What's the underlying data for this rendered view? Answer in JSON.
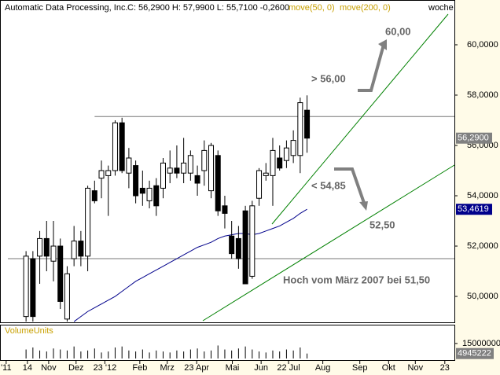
{
  "chart_data": {
    "type": "candlestick",
    "title": "Automatic Data Processing, Inc.",
    "quote": "C: 56,2900 H: 57,9900 L: 55,7100 -0,2600",
    "indicators": [
      "move(50, 0)",
      "move(200, 0)"
    ],
    "period": "woche",
    "x": [
      0,
      1,
      2,
      3,
      4,
      5,
      6,
      7,
      8,
      9,
      10,
      11,
      12,
      13,
      14,
      15,
      16,
      17,
      18,
      19,
      20,
      21,
      22,
      23,
      24,
      25,
      26,
      27,
      28,
      29,
      30,
      31,
      32,
      33,
      34,
      35,
      36,
      37,
      38,
      39,
      40,
      41
    ],
    "open": [
      49.2,
      51.5,
      51.6,
      52.3,
      51.4,
      52.0,
      49.1,
      51.5,
      52.2,
      51.6,
      54.2,
      54.7,
      54.8,
      55.0,
      56.9,
      54.9,
      55.2,
      54.3,
      53.8,
      54.4,
      54.3,
      54.9,
      55.1,
      54.9,
      54.9,
      54.8,
      55.0,
      54.2,
      55.6,
      53.6,
      52.4,
      52.3,
      53.4,
      50.8,
      53.9,
      54.8,
      54.8,
      55.5,
      55.4,
      55.6,
      55.6,
      57.4
    ],
    "high": [
      51.8,
      51.8,
      52.6,
      53.0,
      53.0,
      52.3,
      51.2,
      52.8,
      52.6,
      54.4,
      54.6,
      55.4,
      55.2,
      57.0,
      57.1,
      55.9,
      55.4,
      55.0,
      54.6,
      54.7,
      55.5,
      55.8,
      56.0,
      56.3,
      55.8,
      55.2,
      56.2,
      56.1,
      55.8,
      54.0,
      53.0,
      52.8,
      53.6,
      53.8,
      55.1,
      55.3,
      56.3,
      56.0,
      56.2,
      56.6,
      57.9,
      57.99
    ],
    "low": [
      49.0,
      49.0,
      50.5,
      51.0,
      50.6,
      49.5,
      49.0,
      51.2,
      51.2,
      51.0,
      53.7,
      53.9,
      53.2,
      54.8,
      54.9,
      54.3,
      53.7,
      53.6,
      53.5,
      53.2,
      53.9,
      54.5,
      54.7,
      54.5,
      54.6,
      54.0,
      54.4,
      53.9,
      53.2,
      52.7,
      51.5,
      51.1,
      50.5,
      50.7,
      53.6,
      54.6,
      53.6,
      55.0,
      55.1,
      55.3,
      54.9,
      55.71
    ],
    "close": [
      51.6,
      49.2,
      52.3,
      51.6,
      52.0,
      49.8,
      50.9,
      52.2,
      51.6,
      54.3,
      53.8,
      55.0,
      55.0,
      56.9,
      55.0,
      55.5,
      54.0,
      54.1,
      54.3,
      53.6,
      55.3,
      55.1,
      54.9,
      55.3,
      55.6,
      54.5,
      55.8,
      56.0,
      53.4,
      53.3,
      51.7,
      51.5,
      50.5,
      53.6,
      55.0,
      54.9,
      55.8,
      55.1,
      55.9,
      56.2,
      57.7,
      56.29
    ],
    "close_label": "56,2900",
    "up_color": "#ffffff",
    "down_color": "#000000",
    "series": [
      {
        "name": "move(50, 0)",
        "color": "#00008b",
        "last_label": "53,4619",
        "values": [
          null,
          null,
          null,
          null,
          null,
          null,
          null,
          49.0,
          49.2,
          49.4,
          49.55,
          49.7,
          49.85,
          50.0,
          50.2,
          50.4,
          50.6,
          50.75,
          50.9,
          51.05,
          51.2,
          51.35,
          51.5,
          51.65,
          51.8,
          51.95,
          52.05,
          52.15,
          52.3,
          52.4,
          52.45,
          52.5,
          52.5,
          52.45,
          52.5,
          52.6,
          52.7,
          52.8,
          52.95,
          53.1,
          53.3,
          53.4619
        ]
      }
    ],
    "hlines": [
      57.15,
      51.5
    ],
    "ylim": [
      48.97,
      61.78
    ],
    "yticks": [
      {
        "value": 50,
        "label": "50,0000"
      },
      {
        "value": 52,
        "label": "52,0000"
      },
      {
        "value": 54,
        "label": "54,0000"
      },
      {
        "value": 56,
        "label": "56,0000"
      },
      {
        "value": 58,
        "label": "58,0000"
      },
      {
        "value": 60,
        "label": "60,0000"
      }
    ],
    "xlim": [
      -3.8,
      62.5
    ],
    "xticks": [
      {
        "value": -2.9,
        "label": "'11"
      },
      {
        "value": 0.2,
        "label": "14"
      },
      {
        "value": 3.3,
        "label": "Nov"
      },
      {
        "value": 7.3,
        "label": "Dez"
      },
      {
        "value": 11.5,
        "label": "23 '12"
      },
      {
        "value": 16.6,
        "label": "Feb"
      },
      {
        "value": 20.6,
        "label": "Mrz"
      },
      {
        "value": 24.9,
        "label": "23 Apr"
      },
      {
        "value": 30.1,
        "label": "Mai"
      },
      {
        "value": 34.3,
        "label": "Jun"
      },
      {
        "value": 38.3,
        "label": "22 Jul"
      },
      {
        "value": 43.3,
        "label": "Aug"
      },
      {
        "value": 48.7,
        "label": "Sep"
      },
      {
        "value": 52.9,
        "label": "Okt"
      },
      {
        "value": 56.8,
        "label": "Nov"
      },
      {
        "value": 61.1,
        "label": "23"
      }
    ],
    "annotations": [
      "60,00",
      "> 56,00",
      "< 54,85",
      "52,50",
      "Hoch vom März 2007 bei 51,50"
    ],
    "volume": {
      "label": "VolumeUnits",
      "values": [
        9000000,
        11000000,
        8000000,
        7000000,
        10000000,
        9000000,
        8000000,
        12000000,
        7000000,
        8000000,
        10000000,
        6000000,
        7000000,
        11000000,
        12000000,
        8000000,
        7000000,
        9000000,
        6000000,
        8000000,
        7000000,
        6000000,
        8000000,
        7000000,
        9000000,
        10000000,
        7000000,
        8000000,
        13000000,
        9000000,
        8000000,
        10000000,
        12000000,
        9000000,
        7000000,
        6000000,
        8000000,
        7000000,
        9000000,
        8000000,
        11000000,
        4945222
      ],
      "ylim": [
        0,
        33000000
      ],
      "yticks": [
        15000000
      ]
    }
  }
}
